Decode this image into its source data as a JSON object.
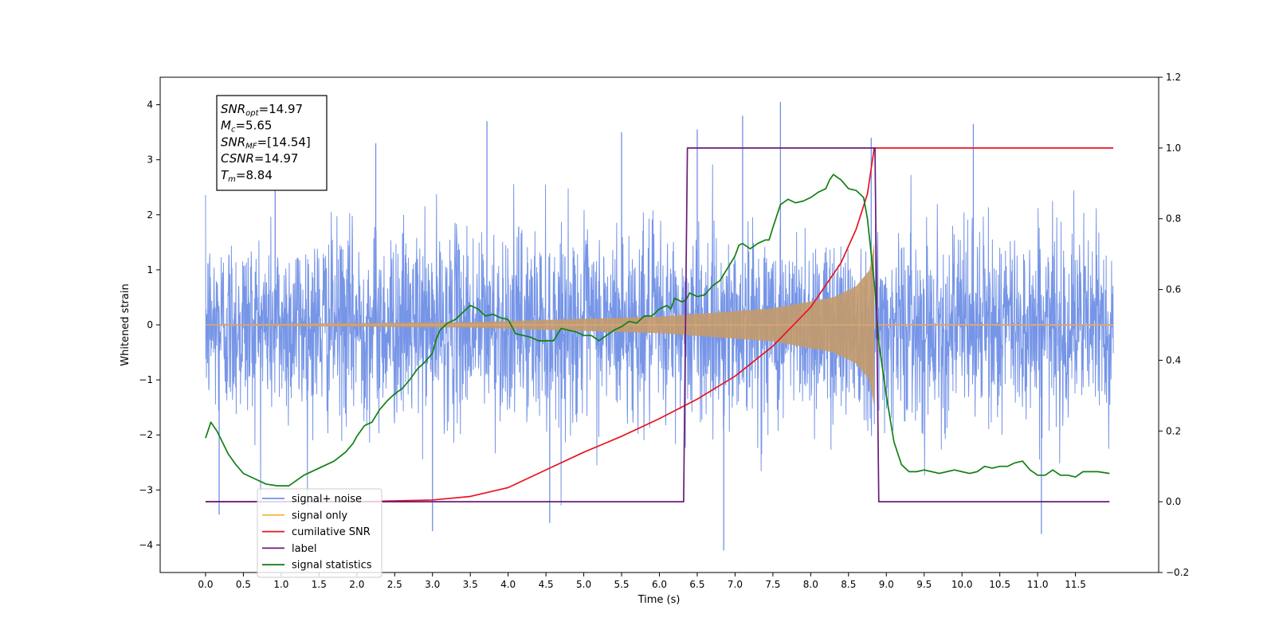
{
  "chart_data": {
    "type": "line",
    "xlabel": "Time (s)",
    "ylabel": "Whitened strain",
    "x_ticks": [
      0.0,
      0.5,
      1.0,
      1.5,
      2.0,
      2.5,
      3.0,
      3.5,
      4.0,
      4.5,
      5.0,
      5.5,
      6.0,
      6.5,
      7.0,
      7.5,
      8.0,
      8.5,
      9.0,
      9.5,
      10.0,
      10.5,
      11.0,
      11.5
    ],
    "x_tick_labels": [
      "0.0",
      "0.5",
      "1.0",
      "1.5",
      "2.0",
      "2.5",
      "3.0",
      "3.5",
      "4.0",
      "4.5",
      "5.0",
      "5.5",
      "6.0",
      "6.5",
      "7.0",
      "7.5",
      "8.0",
      "8.5",
      "9.0",
      "9.5",
      "10.0",
      "10.5",
      "11.0",
      "11.5"
    ],
    "xlim": [
      -0.6,
      12.6
    ],
    "ylim_left": [
      -4.5,
      4.5
    ],
    "yticks_left": [
      -4,
      -3,
      -2,
      -1,
      0,
      1,
      2,
      3,
      4
    ],
    "ytick_labels_left": [
      "−4",
      "−3",
      "−2",
      "−1",
      "0",
      "1",
      "2",
      "3",
      "4"
    ],
    "ylim_right": [
      -0.2,
      1.2
    ],
    "yticks_right": [
      -0.2,
      0.0,
      0.2,
      0.4,
      0.6,
      0.8,
      1.0,
      1.2
    ],
    "ytick_labels_right": [
      "−0.2",
      "0.0",
      "0.2",
      "0.4",
      "0.6",
      "0.8",
      "1.0",
      "1.2"
    ],
    "legend_position": "lower-left",
    "grid": false,
    "annotation": [
      {
        "sym": "SNR",
        "sub": "opt",
        "value": "=14.97"
      },
      {
        "sym": "M",
        "sub": "c",
        "value": "=5.65"
      },
      {
        "sym": "SNR",
        "sub": "MF",
        "value": "=[14.54]"
      },
      {
        "sym": "CSNR",
        "sub": "",
        "value": "=14.97"
      },
      {
        "sym": "T",
        "sub": "m",
        "value": "=8.84"
      }
    ],
    "series": [
      {
        "name": "signal+ noise",
        "axis": "left",
        "color": "#6f8fe6",
        "description_kind": "noise",
        "x_range": [
          0.0,
          12.0
        ],
        "noise_std": 0.85,
        "spikes": [
          {
            "x": 0.18,
            "y": -3.45
          },
          {
            "x": 3.0,
            "y": -3.75
          },
          {
            "x": 4.55,
            "y": -3.6
          },
          {
            "x": 6.85,
            "y": -4.1
          },
          {
            "x": 11.05,
            "y": -3.8
          },
          {
            "x": 7.6,
            "y": 4.05
          },
          {
            "x": 7.1,
            "y": 3.8
          },
          {
            "x": 3.72,
            "y": 3.7
          },
          {
            "x": 10.15,
            "y": 3.65
          },
          {
            "x": 6.5,
            "y": 3.55
          },
          {
            "x": 5.5,
            "y": 3.5
          },
          {
            "x": 8.8,
            "y": 3.4
          },
          {
            "x": 0.92,
            "y": 3.4
          },
          {
            "x": 2.25,
            "y": 3.3
          }
        ]
      },
      {
        "name": "signal only",
        "axis": "left",
        "color": "#f5b84a",
        "description_kind": "chirp",
        "x_range": [
          0.0,
          12.0
        ],
        "merger_time": 8.84,
        "envelope": [
          [
            0.0,
            0.01
          ],
          [
            3.5,
            0.05
          ],
          [
            6.0,
            0.15
          ],
          [
            7.5,
            0.3
          ],
          [
            8.3,
            0.5
          ],
          [
            8.6,
            0.7
          ],
          [
            8.78,
            1.0
          ],
          [
            8.84,
            1.5
          ]
        ]
      },
      {
        "name": "cumilative SNR",
        "axis": "right",
        "color": "#e8141e",
        "x": [
          0.0,
          2.0,
          3.0,
          3.5,
          4.0,
          4.5,
          5.0,
          5.5,
          6.0,
          6.5,
          7.0,
          7.5,
          8.0,
          8.4,
          8.6,
          8.75,
          8.84,
          9.0,
          10.0,
          11.0,
          12.0
        ],
        "y": [
          0.0,
          0.0,
          0.005,
          0.015,
          0.04,
          0.09,
          0.14,
          0.185,
          0.235,
          0.29,
          0.355,
          0.44,
          0.55,
          0.675,
          0.77,
          0.87,
          1.0,
          1.0,
          1.0,
          1.0,
          1.0
        ]
      },
      {
        "name": "label",
        "axis": "right",
        "color": "#6a1b7a",
        "x": [
          0.0,
          6.32,
          6.37,
          8.85,
          8.9,
          11.95
        ],
        "y": [
          0.0,
          0.0,
          1.0,
          1.0,
          0.0,
          0.0
        ]
      },
      {
        "name": "signal statistics",
        "axis": "right",
        "color": "#128012",
        "x": [
          0.0,
          0.07,
          0.15,
          0.3,
          0.4,
          0.5,
          0.7,
          0.8,
          0.95,
          1.1,
          1.3,
          1.5,
          1.7,
          1.85,
          1.95,
          2.0,
          2.1,
          2.2,
          2.3,
          2.4,
          2.5,
          2.6,
          2.7,
          2.8,
          2.9,
          3.0,
          3.05,
          3.1,
          3.2,
          3.3,
          3.4,
          3.45,
          3.5,
          3.6,
          3.7,
          3.8,
          3.9,
          4.0,
          4.1,
          4.2,
          4.3,
          4.4,
          4.5,
          4.6,
          4.7,
          4.8,
          4.9,
          5.0,
          5.1,
          5.2,
          5.3,
          5.4,
          5.5,
          5.6,
          5.7,
          5.8,
          5.9,
          6.0,
          6.1,
          6.15,
          6.2,
          6.3,
          6.35,
          6.4,
          6.5,
          6.6,
          6.7,
          6.8,
          6.9,
          7.0,
          7.05,
          7.1,
          7.2,
          7.3,
          7.4,
          7.45,
          7.5,
          7.6,
          7.7,
          7.8,
          7.9,
          8.0,
          8.1,
          8.2,
          8.25,
          8.3,
          8.4,
          8.5,
          8.6,
          8.7,
          8.75,
          8.8,
          8.85,
          8.9,
          9.0,
          9.1,
          9.2,
          9.3,
          9.4,
          9.5,
          9.6,
          9.7,
          9.8,
          9.9,
          10.0,
          10.1,
          10.2,
          10.3,
          10.4,
          10.5,
          10.6,
          10.7,
          10.8,
          10.9,
          11.0,
          11.1,
          11.2,
          11.3,
          11.4,
          11.5,
          11.6,
          11.8,
          11.95
        ],
        "y": [
          0.18,
          0.225,
          0.2,
          0.135,
          0.105,
          0.08,
          0.06,
          0.05,
          0.045,
          0.045,
          0.075,
          0.095,
          0.115,
          0.14,
          0.165,
          0.185,
          0.215,
          0.225,
          0.26,
          0.285,
          0.305,
          0.32,
          0.345,
          0.375,
          0.395,
          0.42,
          0.46,
          0.485,
          0.505,
          0.515,
          0.535,
          0.545,
          0.555,
          0.545,
          0.525,
          0.53,
          0.52,
          0.515,
          0.475,
          0.47,
          0.465,
          0.455,
          0.455,
          0.455,
          0.49,
          0.485,
          0.48,
          0.47,
          0.47,
          0.455,
          0.47,
          0.485,
          0.495,
          0.51,
          0.505,
          0.525,
          0.525,
          0.545,
          0.555,
          0.545,
          0.575,
          0.565,
          0.57,
          0.59,
          0.58,
          0.585,
          0.61,
          0.625,
          0.66,
          0.695,
          0.725,
          0.73,
          0.715,
          0.73,
          0.74,
          0.74,
          0.775,
          0.84,
          0.855,
          0.845,
          0.85,
          0.86,
          0.875,
          0.885,
          0.91,
          0.925,
          0.91,
          0.885,
          0.88,
          0.86,
          0.8,
          0.7,
          0.6,
          0.45,
          0.3,
          0.17,
          0.105,
          0.085,
          0.085,
          0.09,
          0.085,
          0.08,
          0.085,
          0.09,
          0.085,
          0.08,
          0.085,
          0.1,
          0.095,
          0.1,
          0.1,
          0.11,
          0.115,
          0.09,
          0.075,
          0.075,
          0.09,
          0.075,
          0.075,
          0.07,
          0.085,
          0.085,
          0.08
        ]
      }
    ],
    "legend": [
      {
        "label": "signal+ noise",
        "color": "#6f8fe6"
      },
      {
        "label": "signal only",
        "color": "#f5b84a"
      },
      {
        "label": "cumilative SNR",
        "color": "#e8141e"
      },
      {
        "label": "label",
        "color": "#6a1b7a"
      },
      {
        "label": "signal statistics",
        "color": "#128012"
      }
    ]
  }
}
